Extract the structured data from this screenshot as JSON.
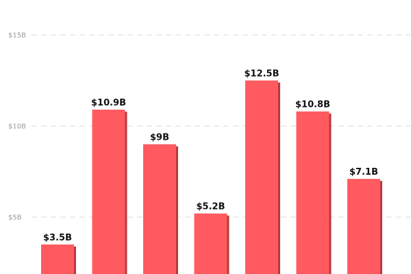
{
  "chart_data": {
    "type": "bar",
    "title": "",
    "xlabel": "",
    "ylabel": "",
    "ylim": [
      0,
      15
    ],
    "grid": true,
    "y_ticks": [
      {
        "value": 5,
        "label": "$5B"
      },
      {
        "value": 10,
        "label": "$10B"
      },
      {
        "value": 15,
        "label": "$15B"
      }
    ],
    "values": [
      3.5,
      10.9,
      9,
      5.2,
      12.5,
      10.8,
      7.1
    ],
    "value_labels": [
      "$3.5B",
      "$10.9B",
      "$9B",
      "$5.2B",
      "$12.5B",
      "$10.8B",
      "$7.1B"
    ],
    "bar_color": "#ff5a5f",
    "bar_shadow_color": "#b83a3e"
  }
}
